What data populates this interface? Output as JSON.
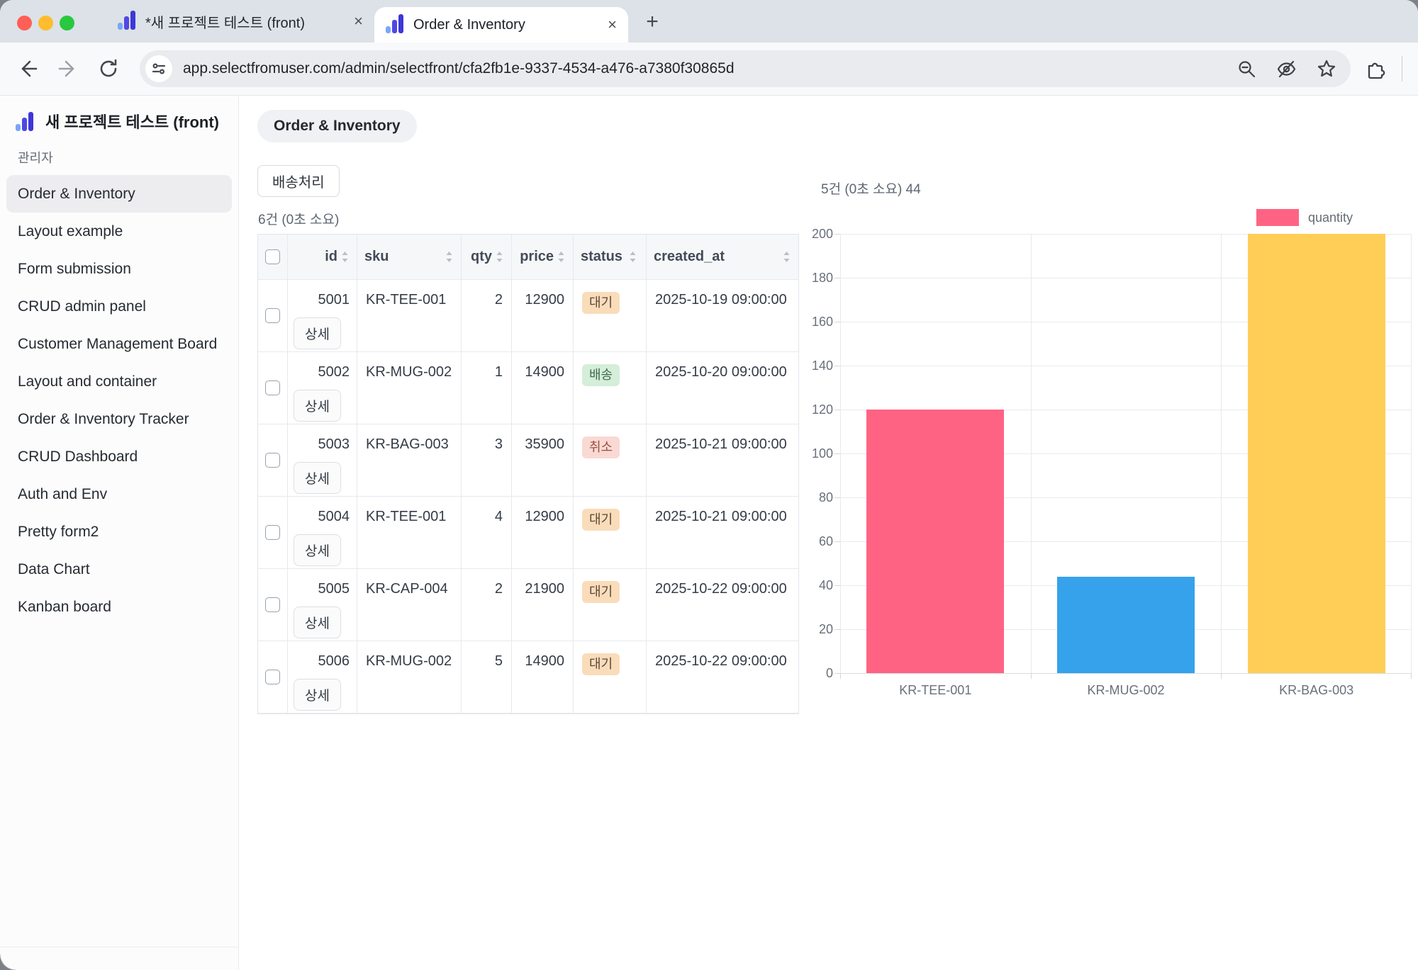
{
  "browser": {
    "tabs": [
      {
        "title": "*새 프로젝트 테스트 (front)",
        "active": false
      },
      {
        "title": "Order & Inventory",
        "active": true
      }
    ],
    "url": "app.selectfromuser.com/admin/selectfront/cfa2fb1e-9337-4534-a476-a7380f30865d"
  },
  "sidebar": {
    "brand": "새 프로젝트 테스트 (front)",
    "role": "관리자",
    "items": [
      {
        "label": "Order & Inventory",
        "active": true
      },
      {
        "label": "Layout example",
        "active": false
      },
      {
        "label": "Form submission",
        "active": false
      },
      {
        "label": "CRUD admin panel",
        "active": false
      },
      {
        "label": "Customer Management Board",
        "active": false
      },
      {
        "label": "Layout and container",
        "active": false
      },
      {
        "label": "Order & Inventory Tracker",
        "active": false
      },
      {
        "label": "CRUD Dashboard",
        "active": false
      },
      {
        "label": "Auth and Env",
        "active": false
      },
      {
        "label": "Pretty form2",
        "active": false
      },
      {
        "label": "Data Chart",
        "active": false
      },
      {
        "label": "Kanban board",
        "active": false
      }
    ]
  },
  "main": {
    "page_chip": "Order & Inventory",
    "ship_button": "배송처리",
    "result_count": "6건 (0초 소요)",
    "chart_header": "5건 (0초 소요) 44",
    "table": {
      "columns": [
        "id",
        "sku",
        "qty",
        "price",
        "status",
        "created_at"
      ],
      "detail_button": "상세",
      "rows": [
        {
          "id": "5001",
          "sku": "KR-TEE-001",
          "qty": "2",
          "price": "12900",
          "status": "대기",
          "status_kind": "pending",
          "created_at": "2025-10-19 09:00:00"
        },
        {
          "id": "5002",
          "sku": "KR-MUG-002",
          "qty": "1",
          "price": "14900",
          "status": "배송",
          "status_kind": "shipped",
          "created_at": "2025-10-20 09:00:00"
        },
        {
          "id": "5003",
          "sku": "KR-BAG-003",
          "qty": "3",
          "price": "35900",
          "status": "취소",
          "status_kind": "canceled",
          "created_at": "2025-10-21 09:00:00"
        },
        {
          "id": "5004",
          "sku": "KR-TEE-001",
          "qty": "4",
          "price": "12900",
          "status": "대기",
          "status_kind": "pending",
          "created_at": "2025-10-21 09:00:00"
        },
        {
          "id": "5005",
          "sku": "KR-CAP-004",
          "qty": "2",
          "price": "21900",
          "status": "대기",
          "status_kind": "pending",
          "created_at": "2025-10-22 09:00:00"
        },
        {
          "id": "5006",
          "sku": "KR-MUG-002",
          "qty": "5",
          "price": "14900",
          "status": "대기",
          "status_kind": "pending",
          "created_at": "2025-10-22 09:00:00"
        }
      ]
    }
  },
  "colors": {
    "brand_indigo": "#3e37d8",
    "badge_pending_bg": "#fadcba",
    "badge_pending_text": "#57493a",
    "badge_shipped_bg": "#d4eed9",
    "badge_shipped_text": "#3f6a4d",
    "badge_canceled_bg": "#f9d9d3",
    "badge_canceled_text": "#9c4f43"
  },
  "chart_data": {
    "type": "bar",
    "categories": [
      "KR-TEE-001",
      "KR-MUG-002",
      "KR-BAG-003"
    ],
    "series": [
      {
        "name": "quantity",
        "values": [
          120,
          44,
          200
        ]
      }
    ],
    "bar_colors": [
      "#FF6384",
      "#36A2EB",
      "#FFCE56"
    ],
    "title": "",
    "xlabel": "",
    "ylabel": "",
    "ylim": [
      0,
      200
    ],
    "ytick_step": 20,
    "grid": true,
    "legend_position": "top-right",
    "legend_label": "quantity",
    "legend_color": "#FF6384"
  }
}
